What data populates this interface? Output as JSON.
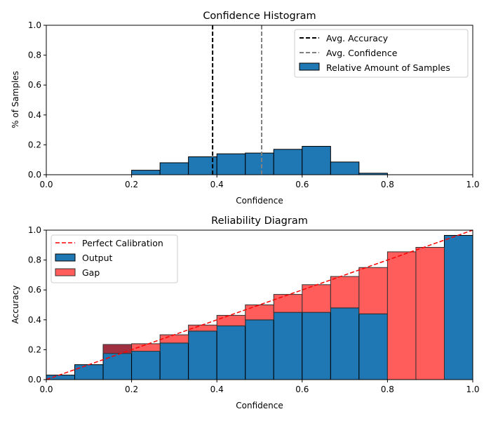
{
  "chart_data": [
    {
      "type": "bar",
      "title": "Confidence Histogram",
      "xlabel": "Confidence",
      "ylabel": "% of Samples",
      "xlim": [
        0,
        1
      ],
      "ylim": [
        0,
        1
      ],
      "xticks": [
        "0.0",
        "0.2",
        "0.4",
        "0.6",
        "0.8",
        "1.0"
      ],
      "yticks": [
        "0.0",
        "0.2",
        "0.4",
        "0.6",
        "0.8",
        "1.0"
      ],
      "bin_edges": [
        0.0,
        0.0667,
        0.1333,
        0.2,
        0.2667,
        0.3333,
        0.4,
        0.4667,
        0.5333,
        0.6,
        0.6667,
        0.7333,
        0.8,
        0.8667,
        0.9333,
        1.0
      ],
      "values": [
        0,
        0,
        0,
        0.03,
        0.08,
        0.12,
        0.14,
        0.145,
        0.17,
        0.19,
        0.085,
        0.01,
        0,
        0,
        0
      ],
      "lines": [
        {
          "name": "Avg. Accuracy",
          "x": 0.39,
          "style": "dashed",
          "color": "#000000"
        },
        {
          "name": "Avg. Confidence",
          "x": 0.505,
          "style": "dashed",
          "color": "#808080"
        }
      ],
      "legend": [
        "Avg. Accuracy",
        "Avg. Confidence",
        "Relative Amount of Samples"
      ],
      "legend_position": "top-right"
    },
    {
      "type": "bar",
      "title": "Reliability Diagram",
      "xlabel": "Confidence",
      "ylabel": "Accuracy",
      "xlim": [
        0,
        1
      ],
      "ylim": [
        0,
        1
      ],
      "xticks": [
        "0.0",
        "0.2",
        "0.4",
        "0.6",
        "0.8",
        "1.0"
      ],
      "yticks": [
        "0.0",
        "0.2",
        "0.4",
        "0.6",
        "0.8",
        "1.0"
      ],
      "bin_edges": [
        0.0,
        0.0667,
        0.1333,
        0.2,
        0.2667,
        0.3333,
        0.4,
        0.4667,
        0.5333,
        0.6,
        0.6667,
        0.7333,
        0.8,
        0.8667,
        0.9333,
        1.0
      ],
      "series": [
        {
          "name": "Output",
          "values": [
            0.03,
            0.1,
            0.23,
            0.19,
            0.245,
            0.325,
            0.36,
            0.4,
            0.45,
            0.45,
            0.48,
            0.44,
            0,
            0,
            0.965
          ]
        },
        {
          "name": "Gap",
          "bottom": [
            0.03,
            0.1,
            0.175,
            0.19,
            0.245,
            0.325,
            0.36,
            0.4,
            0.45,
            0.45,
            0.48,
            0.44,
            0,
            0,
            0.965
          ],
          "top": [
            0.03,
            0.1,
            0.235,
            0.24,
            0.3,
            0.365,
            0.43,
            0.5,
            0.57,
            0.635,
            0.69,
            0.75,
            0.855,
            0.885,
            0.965
          ]
        }
      ],
      "reference_line": {
        "name": "Perfect Calibration",
        "from": [
          0,
          0
        ],
        "to": [
          1,
          1
        ],
        "style": "dashed",
        "color": "#ff0000"
      },
      "legend": [
        "Perfect Calibration",
        "Output",
        "Gap"
      ],
      "legend_position": "top-left"
    }
  ],
  "colors": {
    "bar_blue": "#1f77b4",
    "gap_red": "#ff5c5c",
    "gap_overlap": "#a03040",
    "avg_accuracy": "#000000",
    "avg_confidence": "#808080",
    "calibration": "#ff0000"
  }
}
